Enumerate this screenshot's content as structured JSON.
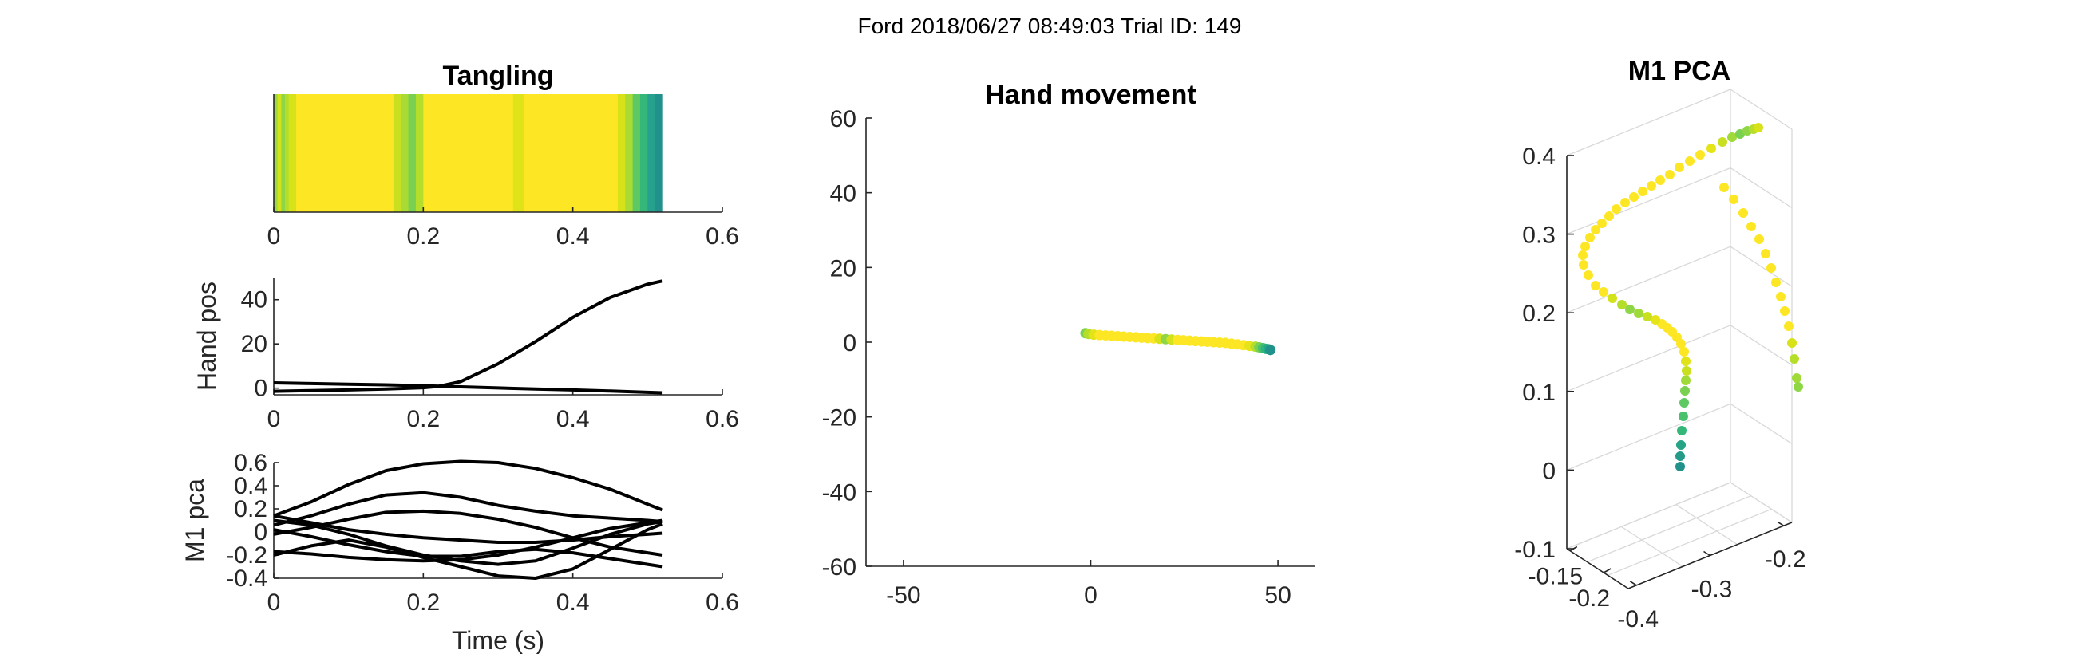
{
  "figure": {
    "suptitle": "Ford 2018/06/27 08:49:03 Trial ID: 149"
  },
  "chart_data": [
    {
      "id": "tangling",
      "type": "heatmap",
      "title": "Tangling",
      "xlabel": "",
      "ylabel": "",
      "xlim": [
        0,
        0.6
      ],
      "xticks": [
        0,
        0.2,
        0.4,
        0.6
      ],
      "tick_labels": [
        "0",
        "0.2",
        "0.4",
        "0.6"
      ],
      "colormap": "viridis",
      "segments": [
        {
          "x0": 0.0,
          "x1": 0.005,
          "color": "#a0da39"
        },
        {
          "x0": 0.005,
          "x1": 0.01,
          "color": "#d2e21b"
        },
        {
          "x0": 0.01,
          "x1": 0.015,
          "color": "#8ed645"
        },
        {
          "x0": 0.015,
          "x1": 0.02,
          "color": "#b5de2b"
        },
        {
          "x0": 0.02,
          "x1": 0.03,
          "color": "#d8e219"
        },
        {
          "x0": 0.03,
          "x1": 0.16,
          "color": "#fde725"
        },
        {
          "x0": 0.16,
          "x1": 0.17,
          "color": "#c8e020"
        },
        {
          "x0": 0.17,
          "x1": 0.18,
          "color": "#a8db34"
        },
        {
          "x0": 0.18,
          "x1": 0.19,
          "color": "#7ad151"
        },
        {
          "x0": 0.19,
          "x1": 0.2,
          "color": "#b5de2b"
        },
        {
          "x0": 0.2,
          "x1": 0.32,
          "color": "#fde725"
        },
        {
          "x0": 0.32,
          "x1": 0.335,
          "color": "#dfe318"
        },
        {
          "x0": 0.335,
          "x1": 0.46,
          "color": "#fde725"
        },
        {
          "x0": 0.46,
          "x1": 0.47,
          "color": "#d8e219"
        },
        {
          "x0": 0.47,
          "x1": 0.48,
          "color": "#a8db34"
        },
        {
          "x0": 0.48,
          "x1": 0.49,
          "color": "#5ec962"
        },
        {
          "x0": 0.49,
          "x1": 0.5,
          "color": "#35b779"
        },
        {
          "x0": 0.5,
          "x1": 0.51,
          "color": "#25a18e"
        },
        {
          "x0": 0.51,
          "x1": 0.52,
          "color": "#21918c"
        }
      ]
    },
    {
      "id": "hand_pos",
      "type": "line",
      "xlabel": "",
      "ylabel": "Hand pos",
      "xlim": [
        0,
        0.6
      ],
      "ylim": [
        -3,
        50
      ],
      "xticks": [
        0,
        0.2,
        0.4,
        0.6
      ],
      "xtick_labels": [
        "0",
        "0.2",
        "0.4",
        "0.6"
      ],
      "yticks": [
        0,
        20,
        40
      ],
      "ytick_labels": [
        "0",
        "20",
        "40"
      ],
      "color": "#000000",
      "series": [
        {
          "x": [
            0,
            0.05,
            0.1,
            0.15,
            0.2,
            0.25,
            0.3,
            0.35,
            0.4,
            0.45,
            0.5,
            0.52
          ],
          "values": [
            2.4,
            2.1,
            1.8,
            1.5,
            1.1,
            0.6,
            0.1,
            -0.4,
            -0.8,
            -1.3,
            -1.9,
            -2.1
          ]
        },
        {
          "x": [
            0,
            0.05,
            0.1,
            0.15,
            0.2,
            0.22,
            0.25,
            0.3,
            0.35,
            0.4,
            0.45,
            0.5,
            0.52
          ],
          "values": [
            -1.4,
            -1.1,
            -0.8,
            -0.4,
            0.2,
            0.8,
            3,
            11,
            21,
            32,
            41,
            47,
            48.5
          ]
        }
      ]
    },
    {
      "id": "m1_pca",
      "type": "line",
      "xlabel": "Time (s)",
      "ylabel": "M1 pca",
      "xlim": [
        0,
        0.6
      ],
      "ylim": [
        -0.4,
        0.6
      ],
      "xticks": [
        0,
        0.2,
        0.4,
        0.6
      ],
      "xtick_labels": [
        "0",
        "0.2",
        "0.4",
        "0.6"
      ],
      "yticks": [
        -0.4,
        -0.2,
        0,
        0.2,
        0.4,
        0.6
      ],
      "ytick_labels": [
        "-0.4",
        "-0.2",
        "0",
        "0.2",
        "0.4",
        "0.6"
      ],
      "color": "#000000",
      "series": [
        {
          "x": [
            0,
            0.05,
            0.1,
            0.15,
            0.2,
            0.25,
            0.3,
            0.35,
            0.4,
            0.45,
            0.5,
            0.52
          ],
          "values": [
            0.14,
            0.26,
            0.41,
            0.53,
            0.59,
            0.61,
            0.6,
            0.55,
            0.47,
            0.37,
            0.24,
            0.19
          ]
        },
        {
          "x": [
            0,
            0.05,
            0.1,
            0.15,
            0.2,
            0.25,
            0.3,
            0.35,
            0.4,
            0.45,
            0.5,
            0.52
          ],
          "values": [
            0.06,
            0.14,
            0.24,
            0.32,
            0.34,
            0.3,
            0.23,
            0.18,
            0.14,
            0.12,
            0.1,
            0.09
          ]
        },
        {
          "x": [
            0,
            0.05,
            0.1,
            0.15,
            0.2,
            0.25,
            0.3,
            0.35,
            0.4,
            0.45,
            0.5,
            0.52
          ],
          "values": [
            -0.02,
            0.04,
            0.11,
            0.17,
            0.18,
            0.16,
            0.11,
            0.04,
            -0.05,
            -0.13,
            -0.18,
            -0.2
          ]
        },
        {
          "x": [
            0,
            0.05,
            0.1,
            0.15,
            0.2,
            0.25,
            0.3,
            0.35,
            0.4,
            0.45,
            0.5,
            0.52
          ],
          "values": [
            0.1,
            0.06,
            -0.02,
            -0.12,
            -0.2,
            -0.25,
            -0.28,
            -0.25,
            -0.14,
            -0.02,
            0.07,
            0.09
          ]
        },
        {
          "x": [
            0,
            0.05,
            0.1,
            0.15,
            0.2,
            0.25,
            0.3,
            0.35,
            0.4,
            0.45,
            0.5,
            0.52
          ],
          "values": [
            0.14,
            0.08,
            0.02,
            -0.02,
            -0.05,
            -0.07,
            -0.09,
            -0.09,
            -0.07,
            -0.04,
            -0.02,
            -0.01
          ]
        },
        {
          "x": [
            0,
            0.05,
            0.1,
            0.15,
            0.2,
            0.25,
            0.3,
            0.35,
            0.4,
            0.45,
            0.5,
            0.52
          ],
          "values": [
            -0.2,
            -0.12,
            -0.07,
            -0.13,
            -0.22,
            -0.3,
            -0.38,
            -0.4,
            -0.32,
            -0.15,
            0.02,
            0.07
          ]
        },
        {
          "x": [
            0,
            0.05,
            0.1,
            0.15,
            0.2,
            0.25,
            0.3,
            0.35,
            0.4,
            0.45,
            0.5,
            0.52
          ],
          "values": [
            -0.17,
            -0.19,
            -0.22,
            -0.24,
            -0.25,
            -0.24,
            -0.2,
            -0.13,
            -0.05,
            0.03,
            0.08,
            0.1
          ]
        },
        {
          "x": [
            0,
            0.05,
            0.1,
            0.15,
            0.2,
            0.25,
            0.3,
            0.35,
            0.4,
            0.45,
            0.5,
            0.52
          ],
          "values": [
            0.02,
            -0.04,
            -0.11,
            -0.17,
            -0.21,
            -0.21,
            -0.17,
            -0.15,
            -0.18,
            -0.23,
            -0.28,
            -0.3
          ]
        }
      ]
    },
    {
      "id": "hand_movement",
      "type": "scatter",
      "title": "Hand movement",
      "xlabel": "",
      "ylabel": "",
      "xlim": [
        -60,
        60
      ],
      "ylim": [
        -60,
        60
      ],
      "xticks": [
        -50,
        0,
        50
      ],
      "xtick_labels": [
        "-50",
        "0",
        "50"
      ],
      "yticks": [
        -60,
        -40,
        -20,
        0,
        20,
        40,
        60
      ],
      "ytick_labels": [
        "-60",
        "-40",
        "-20",
        "0",
        "20",
        "40",
        "60"
      ],
      "colormap": "viridis",
      "points": {
        "x": [
          -1.4,
          -0.6,
          0.8,
          2.4,
          4,
          5.6,
          7.2,
          8.8,
          10.4,
          12,
          13.6,
          15.2,
          16.8,
          18.4,
          20,
          21.6,
          23.2,
          24.8,
          26.4,
          28,
          29.6,
          31.2,
          32.8,
          34.4,
          36,
          37.6,
          39.2,
          40.8,
          42.4,
          44,
          45,
          46,
          46.8,
          47.5,
          48
        ],
        "y": [
          2.4,
          2.2,
          2,
          1.9,
          1.8,
          1.7,
          1.6,
          1.5,
          1.4,
          1.3,
          1.2,
          1.1,
          1,
          0.9,
          0.8,
          0.7,
          0.6,
          0.5,
          0.4,
          0.3,
          0.2,
          0.1,
          0,
          -0.1,
          -0.2,
          -0.4,
          -0.6,
          -0.8,
          -1,
          -1.2,
          -1.4,
          -1.6,
          -1.8,
          -1.9,
          -2.1
        ],
        "colors": [
          "#7ad151",
          "#b5de2b",
          "#e2e418",
          "#fde725",
          "#fde725",
          "#fde725",
          "#fde725",
          "#fde725",
          "#fde725",
          "#fde725",
          "#fde725",
          "#fde725",
          "#fde725",
          "#d8e219",
          "#8ed645",
          "#d2e21b",
          "#fde725",
          "#fde725",
          "#fde725",
          "#fde725",
          "#fde725",
          "#fde725",
          "#fde725",
          "#fde725",
          "#fde725",
          "#fde725",
          "#fde725",
          "#fde725",
          "#e5e419",
          "#b5de2b",
          "#7ad151",
          "#4ac16d",
          "#2fb47c",
          "#23a983",
          "#21918c"
        ]
      }
    },
    {
      "id": "m1_pca_3d",
      "type": "scatter",
      "title": "M1 PCA",
      "xlabel": "",
      "ylabel": "",
      "zlim": [
        -0.1,
        0.4
      ],
      "zticks": [
        -0.1,
        0,
        0.1,
        0.2,
        0.3,
        0.4
      ],
      "ztick_labels": [
        "-0.1",
        "0",
        "0.1",
        "0.2",
        "0.3",
        "0.4"
      ],
      "xticks": [
        -0.4,
        -0.3,
        -0.2
      ],
      "xtick_labels": [
        "-0.4",
        "-0.3",
        "-0.2"
      ],
      "yticks": [
        -0.2,
        -0.15
      ],
      "ytick_labels": [
        "-0.2",
        "-0.15"
      ],
      "colormap": "viridis",
      "points": {
        "u": [
          2105,
          2105,
          2106,
          2107,
          2109,
          2110,
          2111,
          2112,
          2113,
          2112,
          2110,
          2106,
          2101,
          2095,
          2089,
          2082,
          2074,
          2064,
          2053,
          2042,
          2032,
          2020,
          2009,
          1999,
          1990,
          1984,
          1983,
          1986,
          1992,
          1999,
          2007,
          2016,
          2025,
          2036,
          2047,
          2058,
          2069,
          2080,
          2092,
          2104,
          2117,
          2130,
          2144,
          2158,
          2170,
          2180,
          2189,
          2197,
          2203,
          2160,
          2172,
          2184,
          2194,
          2204,
          2212,
          2219,
          2225,
          2231,
          2236,
          2241,
          2245,
          2248,
          2251,
          2253
        ],
        "v": [
          585,
          572,
          558,
          540,
          522,
          505,
          490,
          477,
          465,
          453,
          441,
          431,
          423,
          416,
          411,
          406,
          401,
          397,
          393,
          388,
          382,
          374,
          366,
          358,
          345,
          332,
          320,
          309,
          298,
          288,
          280,
          271,
          262,
          254,
          247,
          240,
          233,
          226,
          219,
          210,
          202,
          194,
          186,
          178,
          172,
          168,
          164,
          162,
          160,
          235,
          250,
          267,
          284,
          300,
          318,
          336,
          354,
          372,
          390,
          409,
          430,
          450,
          474,
          485
        ],
        "colors": [
          "#21918c",
          "#239b88",
          "#25a585",
          "#35b779",
          "#4ac16d",
          "#5ec962",
          "#7ad151",
          "#a0da39",
          "#c8e020",
          "#dfe318",
          "#fde725",
          "#fde725",
          "#fde725",
          "#fde725",
          "#fde725",
          "#fde725",
          "#e5e419",
          "#c8e020",
          "#a0da39",
          "#8ed645",
          "#b5de2b",
          "#d2e21b",
          "#fde725",
          "#fde725",
          "#fde725",
          "#fde725",
          "#fde725",
          "#fde725",
          "#fde725",
          "#fde725",
          "#fde725",
          "#fde725",
          "#fde725",
          "#fde725",
          "#fde725",
          "#fde725",
          "#fde725",
          "#fde725",
          "#fde725",
          "#fde725",
          "#fde725",
          "#fde725",
          "#e5e419",
          "#c8e020",
          "#a0da39",
          "#7ad151",
          "#8ed645",
          "#b5de2b",
          "#d8e219",
          "#fde725",
          "#fde725",
          "#fde725",
          "#fde725",
          "#fde725",
          "#fde725",
          "#fde725",
          "#fde725",
          "#fde725",
          "#fde725",
          "#fde725",
          "#d8e219",
          "#b5de2b",
          "#a0da39",
          "#8ed645"
        ]
      }
    }
  ]
}
